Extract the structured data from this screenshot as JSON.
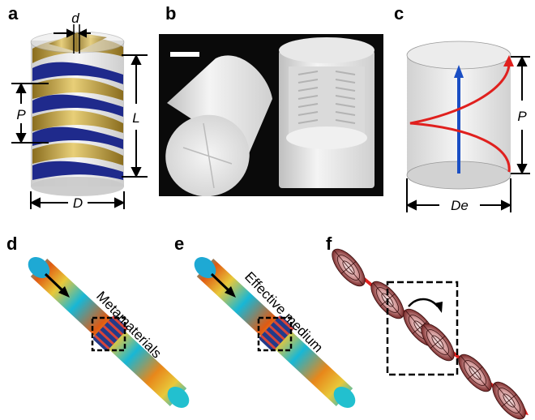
{
  "panels": {
    "a": {
      "label": "a",
      "dims": {
        "d": "d",
        "P": "P",
        "L": "L",
        "D": "D"
      }
    },
    "b": {
      "label": "b"
    },
    "c": {
      "label": "c",
      "dims": {
        "P": "P",
        "De": "De"
      }
    },
    "d": {
      "label": "d",
      "annotation": "Metamaterials"
    },
    "e": {
      "label": "e",
      "annotation": "Effective medium"
    },
    "f": {
      "label": "f"
    }
  },
  "colors": {
    "helix_gold": "#c8a84a",
    "helix_blue": "#1f2a8c",
    "shell_gray": "#d5d5d5",
    "arrow_red": "#e0201e",
    "arrow_blue": "#1b4fc4",
    "tube_cold": "#17b7d6",
    "tube_hot": "#e05a12"
  }
}
